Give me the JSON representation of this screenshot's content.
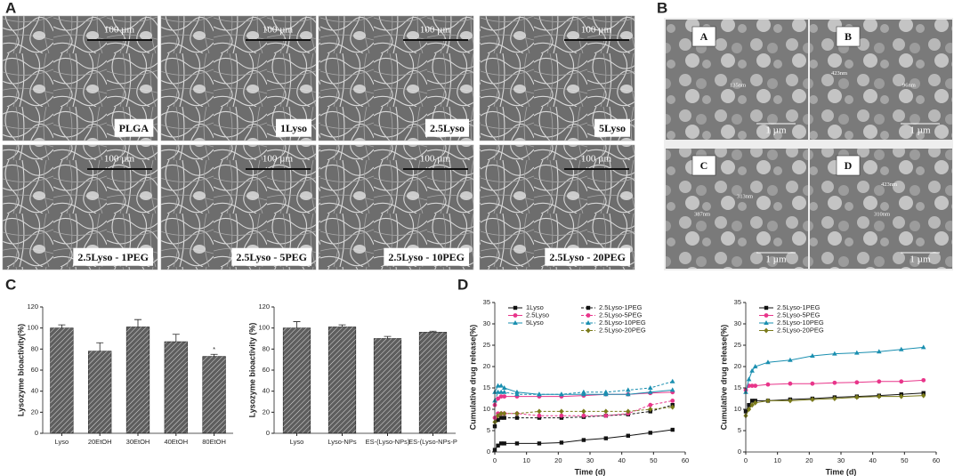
{
  "panels": {
    "a": {
      "label": "A",
      "images": [
        {
          "scale": "100 µm",
          "caption": "PLGA"
        },
        {
          "scale": "100 µm",
          "caption": "1Lyso"
        },
        {
          "scale": "100 µm",
          "caption": "2.5Lyso"
        },
        {
          "scale": "100 µm",
          "caption": "5Lyso"
        },
        {
          "scale": "100 µm",
          "caption": "2.5Lyso - 1PEG"
        },
        {
          "scale": "100 µm",
          "caption": "2.5Lyso - 5PEG"
        },
        {
          "scale": "100 µm",
          "caption": "2.5Lyso - 10PEG"
        },
        {
          "scale": "100 µm",
          "caption": "2.5Lyso - 20PEG"
        }
      ]
    },
    "b": {
      "label": "B",
      "images": [
        {
          "label": "A",
          "scale": "1 µm",
          "sizes": [
            "135nm"
          ]
        },
        {
          "label": "B",
          "scale": "1 µm",
          "sizes": [
            "423nm",
            "96nm"
          ]
        },
        {
          "label": "C",
          "scale": "1 µm",
          "sizes": [
            "387nm",
            "313nm"
          ]
        },
        {
          "label": "D",
          "scale": "1 µm",
          "sizes": [
            "423nm",
            "310nm"
          ]
        }
      ]
    },
    "c": {
      "label": "C"
    },
    "d": {
      "label": "D"
    }
  },
  "chart_data": [
    {
      "type": "bar",
      "ylabel": "Lysozyme bioactivity(%)",
      "categories": [
        "Lyso",
        "20EtOH",
        "30EtOH",
        "40EtOH",
        "80EtOH"
      ],
      "values": [
        100,
        78,
        101,
        87,
        73
      ],
      "errors": [
        3,
        8,
        7,
        7,
        2
      ],
      "annotation": "*",
      "color": "#5e5e5e",
      "ylim": [
        0,
        120
      ],
      "yticks": [
        0,
        20,
        40,
        60,
        80,
        100,
        120
      ]
    },
    {
      "type": "bar",
      "ylabel": "Lysozyme bioactivity (%)",
      "categories": [
        "Lyso",
        "Lyso-NPs",
        "ES-(Lyso-NPs)",
        "ES-(Lyso-NPs-P"
      ],
      "values": [
        100,
        101,
        90,
        96
      ],
      "errors": [
        6,
        2,
        2,
        1
      ],
      "color": "#5e5e5e",
      "ylim": [
        0,
        120
      ],
      "yticks": [
        0,
        20,
        40,
        60,
        80,
        100,
        120
      ]
    },
    {
      "type": "line",
      "xlabel": "Time (d)",
      "ylabel": "Cumulative drug release(%)",
      "x": [
        0,
        1,
        2,
        3,
        7,
        14,
        21,
        28,
        35,
        42,
        49,
        56
      ],
      "series": [
        {
          "name": "1Lyso",
          "color": "#111111",
          "dash": false,
          "marker": "square",
          "values": [
            0.5,
            1.5,
            2,
            2,
            2,
            2,
            2.2,
            2.8,
            3.2,
            3.8,
            4.5,
            5.2
          ]
        },
        {
          "name": "2.5Lyso",
          "color": "#e8358a",
          "dash": false,
          "marker": "circle",
          "values": [
            11,
            12.5,
            13,
            13,
            13,
            13,
            13,
            13.2,
            13.5,
            13.5,
            13.8,
            14
          ]
        },
        {
          "name": "5Lyso",
          "color": "#1a8fb0",
          "dash": false,
          "marker": "triangle",
          "values": [
            14,
            15.5,
            15.5,
            15,
            14,
            13.5,
            13.5,
            13.5,
            13.5,
            13.5,
            14,
            14.5
          ]
        },
        {
          "name": "2.5Lyso-1PEG",
          "color": "#111111",
          "dash": true,
          "marker": "square",
          "values": [
            6,
            7.5,
            8,
            8,
            8,
            8,
            8,
            8.2,
            8.5,
            8.8,
            9.5,
            11
          ]
        },
        {
          "name": "2.5Lyso-5PEG",
          "color": "#e8358a",
          "dash": true,
          "marker": "circle",
          "values": [
            8,
            9,
            9,
            9,
            9,
            8.5,
            8.5,
            8.5,
            8.5,
            9,
            11,
            12
          ]
        },
        {
          "name": "2.5Lyso-10PEG",
          "color": "#1a8fb0",
          "dash": true,
          "marker": "triangle",
          "values": [
            12,
            14,
            14,
            14,
            13.5,
            13.5,
            13.5,
            14,
            14,
            14.5,
            15,
            16.5
          ]
        },
        {
          "name": "2.5Lyso-20PEG",
          "color": "#7a7a1a",
          "dash": true,
          "marker": "diamond",
          "values": [
            7,
            8.5,
            9,
            9,
            9,
            9.5,
            9.5,
            9.5,
            9.5,
            9.5,
            10,
            10.5
          ]
        }
      ],
      "xlim": [
        0,
        60
      ],
      "xticks": [
        0,
        10,
        20,
        30,
        40,
        50,
        60
      ],
      "ylim": [
        0,
        35
      ],
      "yticks": [
        0,
        5,
        10,
        15,
        20,
        25,
        30,
        35
      ]
    },
    {
      "type": "line",
      "xlabel": "Time (d)",
      "ylabel": "Cumulative drug release(%)",
      "x": [
        0,
        1,
        2,
        3,
        7,
        14,
        21,
        28,
        35,
        42,
        49,
        56
      ],
      "series": [
        {
          "name": "2.5Lyso-1PEG",
          "color": "#111111",
          "dash": false,
          "marker": "square",
          "values": [
            9.5,
            11,
            12,
            12,
            12,
            12.3,
            12.5,
            12.8,
            13,
            13.2,
            13.5,
            13.8
          ]
        },
        {
          "name": "2.5Lyso-5PEG",
          "color": "#e8358a",
          "dash": false,
          "marker": "circle",
          "values": [
            14.5,
            15.5,
            15.5,
            15.5,
            15.8,
            16,
            16,
            16.2,
            16.3,
            16.5,
            16.5,
            16.8
          ]
        },
        {
          "name": "2.5Lyso-10PEG",
          "color": "#1a8fb0",
          "dash": false,
          "marker": "triangle",
          "values": [
            14,
            17,
            19,
            20,
            21,
            21.5,
            22.5,
            23,
            23.2,
            23.5,
            24,
            24.5
          ]
        },
        {
          "name": "2.5Lyso-20PEG",
          "color": "#7a7a1a",
          "dash": false,
          "marker": "diamond",
          "values": [
            8.5,
            10,
            11,
            11.5,
            12,
            12,
            12.3,
            12.5,
            12.8,
            13,
            13,
            13.2
          ]
        }
      ],
      "xlim": [
        0,
        60
      ],
      "xticks": [
        0,
        10,
        20,
        30,
        40,
        50,
        60
      ],
      "ylim": [
        0,
        35
      ],
      "yticks": [
        0,
        5,
        10,
        15,
        20,
        25,
        30,
        35
      ]
    }
  ]
}
